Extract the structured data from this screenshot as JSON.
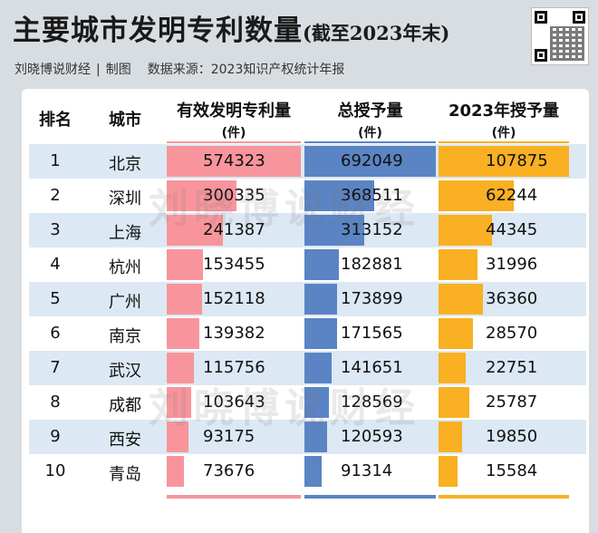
{
  "header": {
    "title_main": "主要城市发明专利数量",
    "title_sub": "(截至2023年末)",
    "credit_author": "刘晓博说财经",
    "credit_sep": "|",
    "credit_role": "制图",
    "credit_source": "数据来源：2023知识产权统计年报"
  },
  "watermark": "刘晓博说财经",
  "colors": {
    "row_shade": "#dce8f3",
    "valid_bar": "#f8959c",
    "granted_bar": "#5b84c4",
    "granted_2023_bar": "#f9b022"
  },
  "chart_data": {
    "type": "table",
    "title": "主要城市发明专利数量(截至2023年末)",
    "columns": [
      "排名",
      "城市",
      "有效发明专利量",
      "总授予量",
      "2023年授予量"
    ],
    "unit_label": "(件)",
    "rows": [
      {
        "rank": "1",
        "city": "北京",
        "valid": 574323,
        "granted": 692049,
        "granted_2023": 107875
      },
      {
        "rank": "2",
        "city": "深圳",
        "valid": 300335,
        "granted": 368511,
        "granted_2023": 62244
      },
      {
        "rank": "3",
        "city": "上海",
        "valid": 241387,
        "granted": 313152,
        "granted_2023": 44345
      },
      {
        "rank": "4",
        "city": "杭州",
        "valid": 153455,
        "granted": 182881,
        "granted_2023": 31996
      },
      {
        "rank": "5",
        "city": "广州",
        "valid": 152118,
        "granted": 173899,
        "granted_2023": 36360
      },
      {
        "rank": "6",
        "city": "南京",
        "valid": 139382,
        "granted": 171565,
        "granted_2023": 28570
      },
      {
        "rank": "7",
        "city": "武汉",
        "valid": 115756,
        "granted": 141651,
        "granted_2023": 22751
      },
      {
        "rank": "8",
        "city": "成都",
        "valid": 103643,
        "granted": 128569,
        "granted_2023": 25787
      },
      {
        "rank": "9",
        "city": "西安",
        "valid": 93175,
        "granted": 120593,
        "granted_2023": 19850
      },
      {
        "rank": "10",
        "city": "青岛",
        "valid": 73676,
        "granted": 91314,
        "granted_2023": 15584
      }
    ]
  }
}
